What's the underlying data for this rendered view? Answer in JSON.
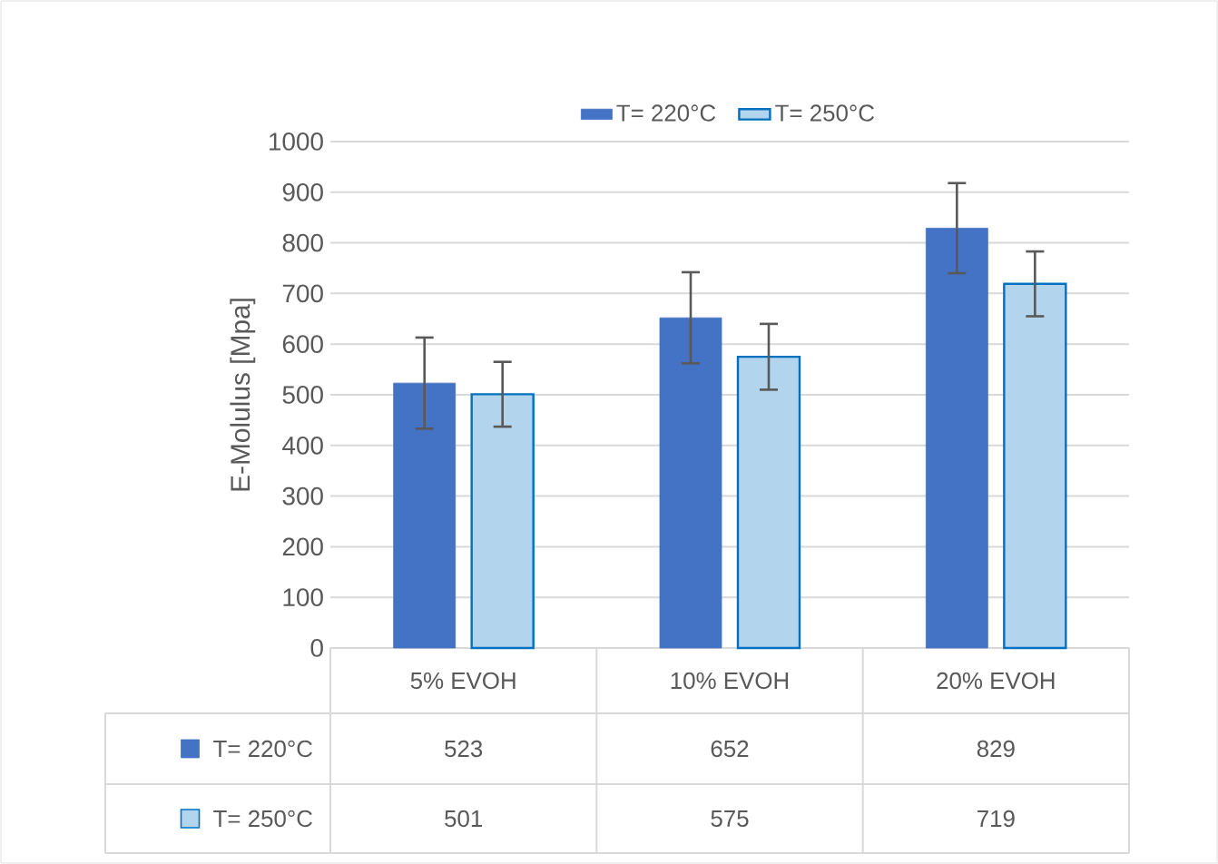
{
  "chart_data": {
    "type": "bar",
    "ylabel": "E-Molulus [Mpa]",
    "categories": [
      "5% EVOH",
      "10% EVOH",
      "20% EVOH"
    ],
    "series": [
      {
        "name": "T= 220°C",
        "color": "#4472c4",
        "values": [
          523,
          652,
          829
        ],
        "errors": [
          90,
          90,
          89
        ]
      },
      {
        "name": "T= 250°C",
        "color": "#0070c0",
        "values": [
          501,
          575,
          719
        ],
        "errors": [
          64,
          65,
          64
        ]
      }
    ],
    "ylim": [
      0,
      1000
    ],
    "yticks": [
      0,
      100,
      200,
      300,
      400,
      500,
      600,
      700,
      800,
      900,
      1000
    ],
    "grid": "y",
    "legend": "top",
    "data_labels": true
  }
}
